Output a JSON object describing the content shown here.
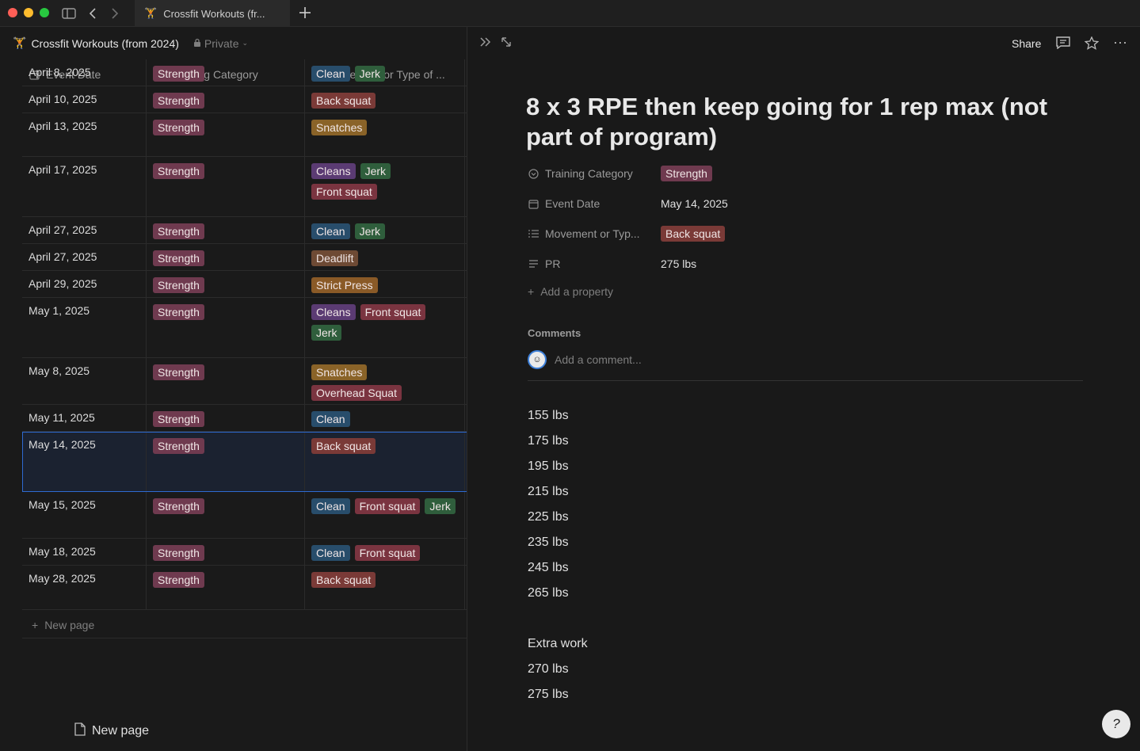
{
  "window": {
    "tab_title": "Crossfit Workouts (fr...",
    "tab_emoji": "🏋"
  },
  "database": {
    "emoji": "🏋",
    "title": "Crossfit Workouts (from 2024)",
    "privacy": "Private",
    "columns": [
      "Event Date",
      "Training Category",
      "Movement or Type of ..."
    ],
    "new_page_row": "New page",
    "bottom_new_page": "New page"
  },
  "tag_colors": {
    "Strength": "#6f3a4f",
    "Back squat": "#7a3a37",
    "Snatches": "#8a6328",
    "Cleans": "#5b3b73",
    "Clean": "#284d6b",
    "Jerk": "#2f5e3c",
    "Front squat": "#7a3440",
    "Deadlift": "#6e4a34",
    "Strict Press": "#8a5a27",
    "Overhead Squat": "#7a3440"
  },
  "rows": [
    {
      "date": "April 8, 2025",
      "category": "Strength",
      "movements": [
        "Clean",
        "Jerk"
      ]
    },
    {
      "date": "April 10, 2025",
      "category": "Strength",
      "movements": [
        "Back squat"
      ]
    },
    {
      "date": "April 13, 2025",
      "category": "Strength",
      "movements": [
        "Snatches"
      ]
    },
    {
      "date": "April 17, 2025",
      "category": "Strength",
      "movements": [
        "Cleans",
        "Jerk",
        "Front squat"
      ]
    },
    {
      "date": "April 27, 2025",
      "category": "Strength",
      "movements": [
        "Clean",
        "Jerk"
      ]
    },
    {
      "date": "April 27, 2025",
      "category": "Strength",
      "movements": [
        "Deadlift"
      ]
    },
    {
      "date": "April 29, 2025",
      "category": "Strength",
      "movements": [
        "Strict Press"
      ]
    },
    {
      "date": "May 1, 2025",
      "category": "Strength",
      "movements": [
        "Cleans",
        "Front squat",
        "Jerk"
      ]
    },
    {
      "date": "May 8, 2025",
      "category": "Strength",
      "movements": [
        "Snatches",
        "Overhead Squat"
      ]
    },
    {
      "date": "May 11, 2025",
      "category": "Strength",
      "movements": [
        "Clean"
      ]
    },
    {
      "date": "May 14, 2025",
      "category": "Strength",
      "movements": [
        "Back squat"
      ],
      "selected": true
    },
    {
      "date": "May 15, 2025",
      "category": "Strength",
      "movements": [
        "Clean",
        "Front squat",
        "Jerk"
      ]
    },
    {
      "date": "May 18, 2025",
      "category": "Strength",
      "movements": [
        "Clean",
        "Front squat"
      ]
    },
    {
      "date": "May 28, 2025",
      "category": "Strength",
      "movements": [
        "Back squat"
      ]
    }
  ],
  "page": {
    "share_label": "Share",
    "title": "8 x 3 RPE then keep going for 1 rep max (not part of program)",
    "properties": [
      {
        "name": "Training Category",
        "value": "Strength",
        "type": "tag",
        "icon": "status-icon"
      },
      {
        "name": "Event Date",
        "value": "May 14, 2025",
        "type": "text",
        "icon": "calendar-icon"
      },
      {
        "name": "Movement or Typ...",
        "value": "Back squat",
        "type": "tag",
        "icon": "list-icon"
      },
      {
        "name": "PR",
        "value": "275 lbs",
        "type": "text",
        "icon": "text-icon"
      }
    ],
    "add_property": "Add a property",
    "comments_label": "Comments",
    "comment_placeholder": "Add a comment...",
    "body_lines": [
      "155 lbs",
      "175 lbs",
      "195 lbs",
      "215 lbs",
      "225 lbs",
      "235 lbs",
      "245 lbs",
      "265 lbs",
      "",
      "Extra work",
      "270 lbs",
      "275 lbs"
    ]
  }
}
